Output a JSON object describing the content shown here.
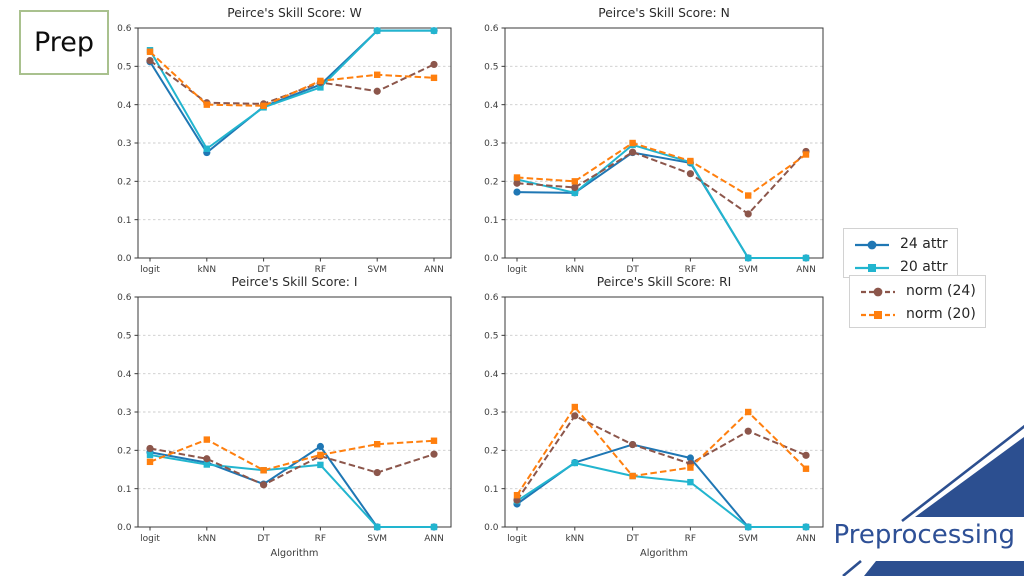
{
  "slide": {
    "prep_label": "Prep",
    "footer_label": "Preprocessing",
    "accent_navy": "#2c4f90",
    "prep_border_color": "#a9c18e"
  },
  "legend": {
    "groups": [
      {
        "entries": [
          {
            "label": "24 attr",
            "color": "#1f77b4",
            "marker": "circle",
            "dash": false
          },
          {
            "label": "20 attr",
            "color": "#22b5cf",
            "marker": "square",
            "dash": false
          }
        ]
      },
      {
        "entries": [
          {
            "label": "norm (24)",
            "color": "#8c564b",
            "marker": "circle",
            "dash": true
          },
          {
            "label": "norm (20)",
            "color": "#ff7f0e",
            "marker": "square",
            "dash": true
          }
        ]
      }
    ]
  },
  "chart_data": [
    {
      "type": "line",
      "title": "Peirce's Skill Score: W",
      "xlabel": "",
      "ylabel": "",
      "categories": [
        "logit",
        "kNN",
        "DT",
        "RF",
        "SVM",
        "ANN"
      ],
      "ylim": [
        0.0,
        0.6
      ],
      "yticks": [
        0.0,
        0.1,
        0.2,
        0.3,
        0.4,
        0.5,
        0.6
      ],
      "grid": true,
      "legend_position": "outside-right",
      "series": [
        {
          "name": "24 attr",
          "color": "#1f77b4",
          "marker": "circle",
          "dash": false,
          "values": [
            0.512,
            0.275,
            0.395,
            0.452,
            0.593,
            0.593
          ]
        },
        {
          "name": "20 attr",
          "color": "#22b5cf",
          "marker": "square",
          "dash": false,
          "values": [
            0.542,
            0.285,
            0.393,
            0.445,
            0.593,
            0.593
          ]
        },
        {
          "name": "norm (24)",
          "color": "#8c564b",
          "marker": "circle",
          "dash": true,
          "values": [
            0.515,
            0.405,
            0.402,
            0.458,
            0.435,
            0.505
          ]
        },
        {
          "name": "norm (20)",
          "color": "#ff7f0e",
          "marker": "square",
          "dash": true,
          "values": [
            0.538,
            0.4,
            0.397,
            0.462,
            0.478,
            0.47
          ]
        }
      ]
    },
    {
      "type": "line",
      "title": "Peirce's Skill Score: N",
      "xlabel": "",
      "ylabel": "",
      "categories": [
        "logit",
        "kNN",
        "DT",
        "RF",
        "SVM",
        "ANN"
      ],
      "ylim": [
        0.0,
        0.6
      ],
      "yticks": [
        0.0,
        0.1,
        0.2,
        0.3,
        0.4,
        0.5,
        0.6
      ],
      "grid": true,
      "legend_position": "outside-right",
      "series": [
        {
          "name": "24 attr",
          "color": "#1f77b4",
          "marker": "circle",
          "dash": false,
          "values": [
            0.172,
            0.17,
            0.275,
            0.248,
            0.0,
            0.0
          ]
        },
        {
          "name": "20 attr",
          "color": "#22b5cf",
          "marker": "square",
          "dash": false,
          "values": [
            0.205,
            0.17,
            0.295,
            0.25,
            0.0,
            0.0
          ]
        },
        {
          "name": "norm (24)",
          "color": "#8c564b",
          "marker": "circle",
          "dash": true,
          "values": [
            0.195,
            0.184,
            0.276,
            0.22,
            0.115,
            0.278
          ]
        },
        {
          "name": "norm (20)",
          "color": "#ff7f0e",
          "marker": "square",
          "dash": true,
          "values": [
            0.21,
            0.2,
            0.3,
            0.253,
            0.163,
            0.27
          ]
        }
      ]
    },
    {
      "type": "line",
      "title": "Peirce's Skill Score: I",
      "xlabel": "Algorithm",
      "ylabel": "",
      "categories": [
        "logit",
        "kNN",
        "DT",
        "RF",
        "SVM",
        "ANN"
      ],
      "ylim": [
        0.0,
        0.6
      ],
      "yticks": [
        0.0,
        0.1,
        0.2,
        0.3,
        0.4,
        0.5,
        0.6
      ],
      "grid": true,
      "legend_position": "outside-right",
      "series": [
        {
          "name": "24 attr",
          "color": "#1f77b4",
          "marker": "circle",
          "dash": false,
          "values": [
            0.195,
            0.168,
            0.112,
            0.21,
            0.0,
            0.0
          ]
        },
        {
          "name": "20 attr",
          "color": "#22b5cf",
          "marker": "square",
          "dash": false,
          "values": [
            0.188,
            0.163,
            0.148,
            0.162,
            0.0,
            0.0
          ]
        },
        {
          "name": "norm (24)",
          "color": "#8c564b",
          "marker": "circle",
          "dash": true,
          "values": [
            0.205,
            0.178,
            0.11,
            0.185,
            0.142,
            0.19
          ]
        },
        {
          "name": "norm (20)",
          "color": "#ff7f0e",
          "marker": "square",
          "dash": true,
          "values": [
            0.17,
            0.228,
            0.148,
            0.188,
            0.216,
            0.225
          ]
        }
      ]
    },
    {
      "type": "line",
      "title": "Peirce's Skill Score: RI",
      "xlabel": "Algorithm",
      "ylabel": "",
      "categories": [
        "logit",
        "kNN",
        "DT",
        "RF",
        "SVM",
        "ANN"
      ],
      "ylim": [
        0.0,
        0.6
      ],
      "yticks": [
        0.0,
        0.1,
        0.2,
        0.3,
        0.4,
        0.5,
        0.6
      ],
      "grid": true,
      "legend_position": "outside-right",
      "series": [
        {
          "name": "24 attr",
          "color": "#1f77b4",
          "marker": "circle",
          "dash": false,
          "values": [
            0.06,
            0.168,
            0.215,
            0.18,
            0.0,
            0.0
          ]
        },
        {
          "name": "20 attr",
          "color": "#22b5cf",
          "marker": "square",
          "dash": false,
          "values": [
            0.068,
            0.167,
            0.133,
            0.117,
            0.0,
            0.0
          ]
        },
        {
          "name": "norm (24)",
          "color": "#8c564b",
          "marker": "circle",
          "dash": true,
          "values": [
            0.07,
            0.29,
            0.215,
            0.165,
            0.25,
            0.187
          ]
        },
        {
          "name": "norm (20)",
          "color": "#ff7f0e",
          "marker": "square",
          "dash": true,
          "values": [
            0.083,
            0.313,
            0.133,
            0.155,
            0.3,
            0.152
          ]
        }
      ]
    }
  ]
}
